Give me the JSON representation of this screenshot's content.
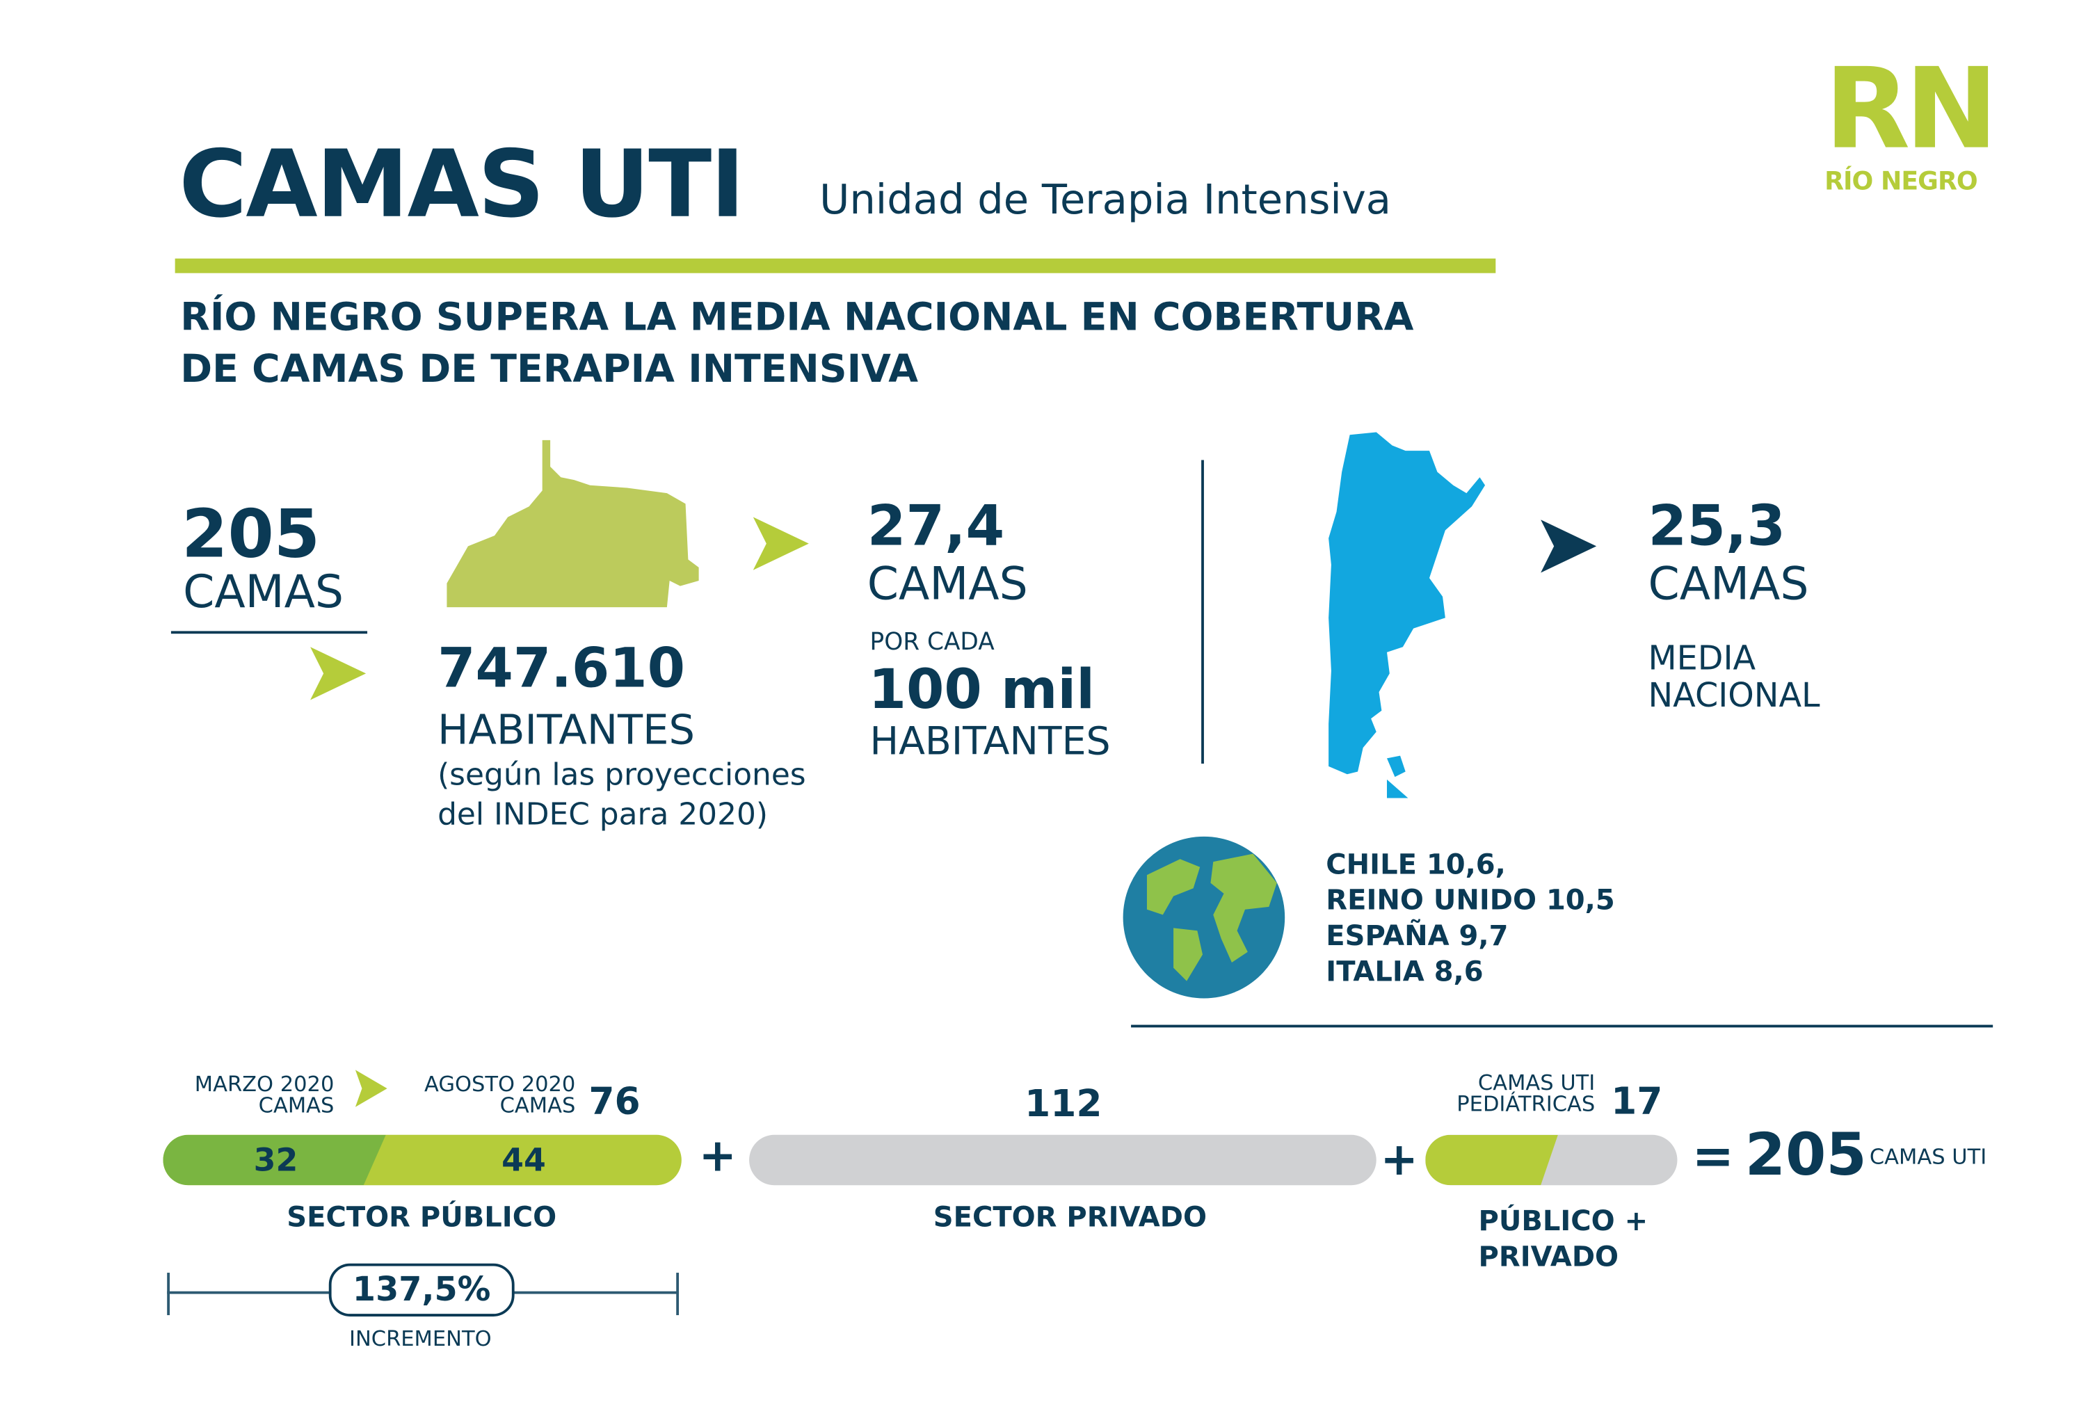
{
  "logo": {
    "mark": "RN",
    "name": "RÍO NEGRO"
  },
  "header": {
    "title": "CAMAS UTI",
    "subtitle": "Unidad de Terapia Intensiva"
  },
  "headline": [
    "RÍO NEGRO SUPERA LA MEDIA NACIONAL EN COBERTURA",
    "DE CAMAS DE TERAPIA INTENSIVA"
  ],
  "province": {
    "beds": "205",
    "beds_label": "CAMAS",
    "population": "747.610",
    "population_label": "HABITANTES",
    "note": [
      "(según las proyecciones",
      "del INDEC para 2020)"
    ]
  },
  "rate": {
    "value": "27,4",
    "label": "CAMAS",
    "per": "POR CADA",
    "per_value": "100 mil",
    "per_label": "HABITANTES"
  },
  "national": {
    "value": "25,3",
    "label": "CAMAS",
    "desc": [
      "MEDIA",
      "NACIONAL"
    ]
  },
  "world": [
    "CHILE 10,6,",
    "REINO UNIDO 10,5",
    "ESPAÑA 9,7",
    "ITALIA 8,6"
  ],
  "public": {
    "march_label": [
      "MARZO 2020",
      "CAMAS"
    ],
    "august_label": [
      "AGOSTO 2020",
      "CAMAS"
    ],
    "total": "76",
    "march_value": "32",
    "added_value": "44",
    "sector": "SECTOR PÚBLICO",
    "increase": "137,5%",
    "increase_label": "INCREMENTO"
  },
  "private": {
    "total": "112",
    "sector": "SECTOR PRIVADO"
  },
  "pediatric": {
    "label": [
      "CAMAS UTI",
      "PEDIÁTRICAS"
    ],
    "total": "17",
    "sector": [
      "PÚBLICO +",
      "PRIVADO"
    ]
  },
  "sum": {
    "plus": "+",
    "equals": "=",
    "total": "205",
    "unit": "CAMAS UTI"
  },
  "colors": {
    "navy": "#0b3a55",
    "green": "#b5cc3a",
    "dark_green": "#7ab541",
    "gray": "#d0d1d3",
    "blue": "#12a7df"
  }
}
